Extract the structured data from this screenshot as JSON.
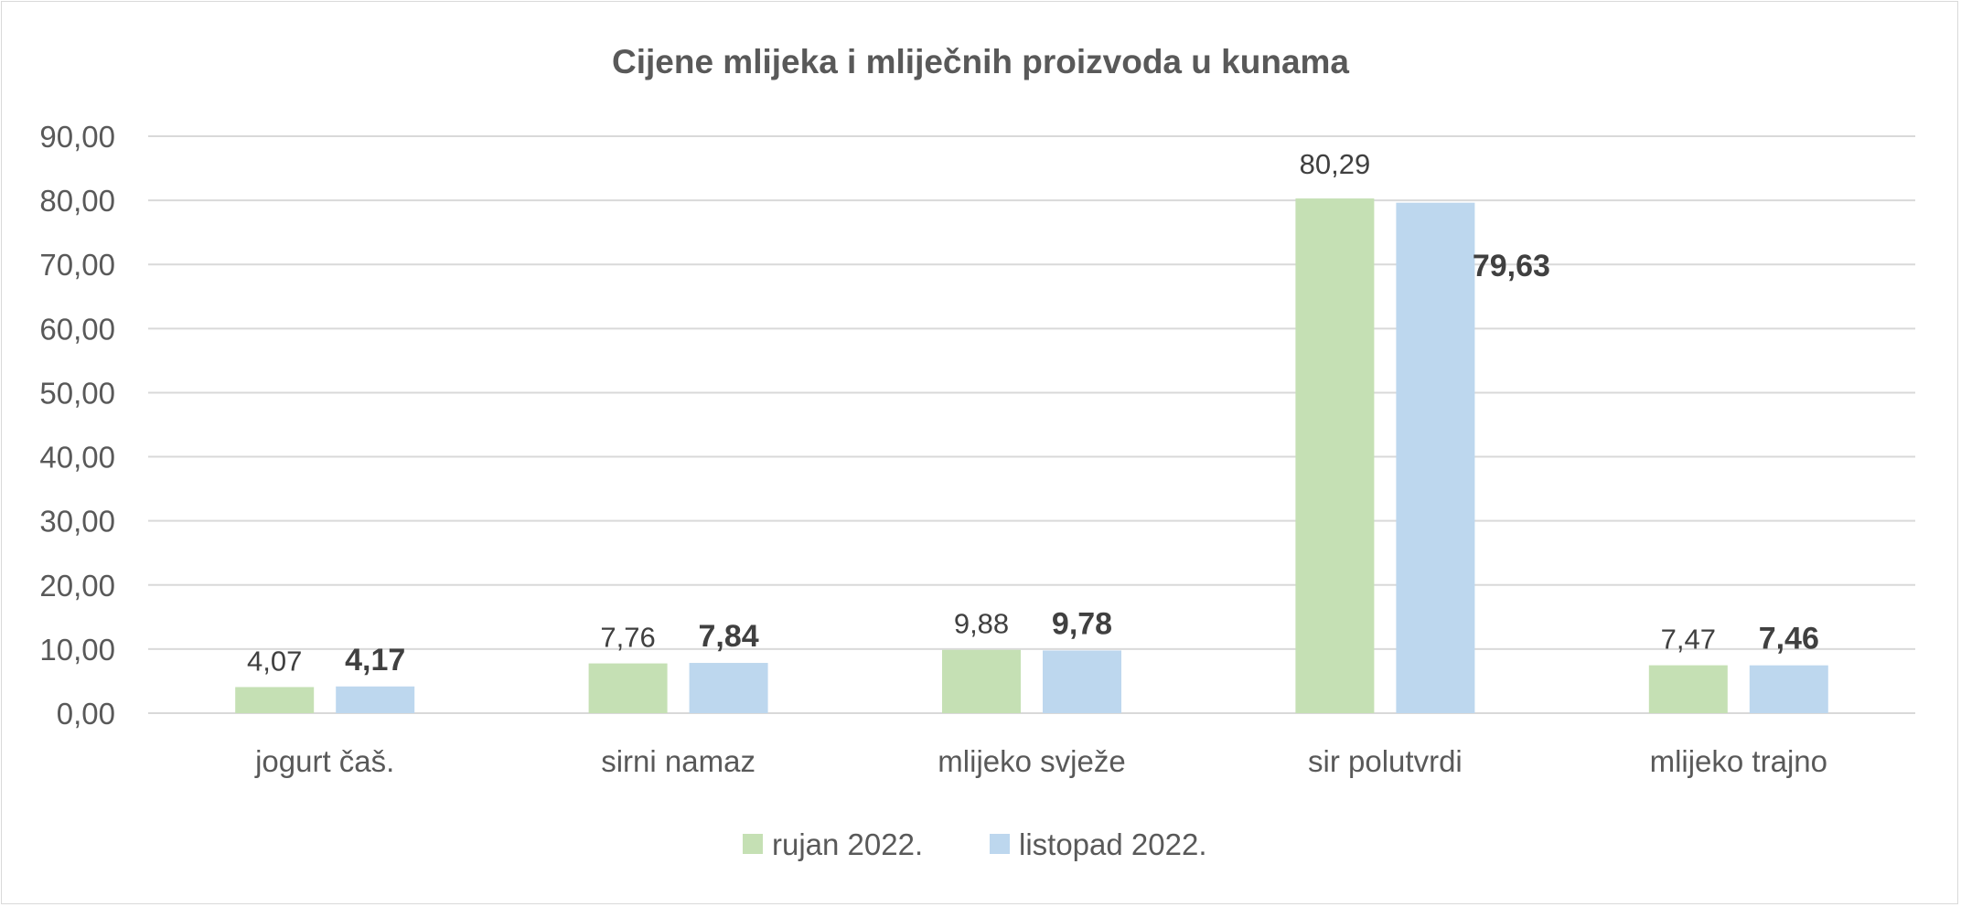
{
  "chart_data": {
    "type": "bar",
    "title": "Cijene mlijeka i mliječnih proizvoda u kunama",
    "xlabel": "",
    "ylabel": "",
    "ylim": [
      0,
      90
    ],
    "yticks": [
      "0,00",
      "10,00",
      "20,00",
      "30,00",
      "40,00",
      "50,00",
      "60,00",
      "70,00",
      "80,00",
      "90,00"
    ],
    "ytick_values": [
      0,
      10,
      20,
      30,
      40,
      50,
      60,
      70,
      80,
      90
    ],
    "grid": true,
    "legend": "bottom",
    "categories": [
      "jogurt čaš.",
      "sirni namaz",
      "mlijeko svježe",
      "sir polutvrdi",
      "mlijeko trajno"
    ],
    "series": [
      {
        "name": "rujan 2022.",
        "color": "#c5e0b4",
        "values": [
          4.07,
          7.76,
          9.88,
          80.29,
          7.47
        ],
        "labels": [
          "4,07",
          "7,76",
          "9,88",
          "80,29",
          "7,47"
        ],
        "label_weight": "normal"
      },
      {
        "name": "listopad 2022.",
        "color": "#bdd7ee",
        "values": [
          4.17,
          7.84,
          9.78,
          79.63,
          7.46
        ],
        "labels": [
          "4,17",
          "7,84",
          "9,78",
          "79,63",
          "7,46"
        ],
        "label_weight": "bold"
      }
    ]
  }
}
